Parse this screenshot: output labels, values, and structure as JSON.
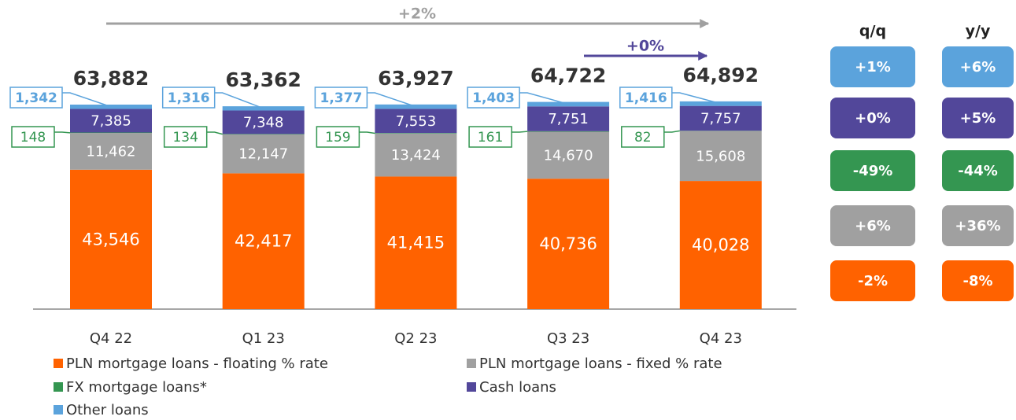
{
  "chart_data": {
    "type": "stacked_bar",
    "categories": [
      "Q4 22",
      "Q1 23",
      "Q2 23",
      "Q3 23",
      "Q4 23"
    ],
    "series": [
      {
        "name": "PLN mortgage loans - floating % rate",
        "color": "#ff6200",
        "values": [
          43546,
          42417,
          41415,
          40736,
          40028
        ],
        "value_labels": [
          "43,546",
          "42,417",
          "41,415",
          "40,736",
          "40,028"
        ]
      },
      {
        "name": "PLN mortgage loans - fixed % rate",
        "color": "#a0a0a0",
        "values": [
          11462,
          12147,
          13424,
          14670,
          15608
        ],
        "value_labels": [
          "11,462",
          "12,147",
          "13,424",
          "14,670",
          "15,608"
        ]
      },
      {
        "name": "FX mortgage loans*",
        "color": "#349651",
        "values": [
          148,
          134,
          159,
          161,
          82
        ]
      },
      {
        "name": "Cash loans",
        "color": "#52479a",
        "values": [
          7385,
          7348,
          7553,
          7751,
          7757
        ],
        "value_labels": [
          "7,385",
          "7,348",
          "7,553",
          "7,751",
          "7,757"
        ]
      },
      {
        "name": "Other loans",
        "color": "#5ba3dc",
        "values": [
          1342,
          1316,
          1377,
          1403,
          1416
        ],
        "value_labels": [
          "1,342",
          "1,316",
          "1,377",
          "1,403",
          "1,416"
        ]
      }
    ],
    "totals": {
      "values": [
        63882,
        63362,
        63927,
        64722,
        64892
      ],
      "value_labels": [
        "63,882",
        "63,362",
        "63,927",
        "64,722",
        "64,892"
      ]
    },
    "annotations": [
      {
        "text": "+2%",
        "color": "#a0a0a0"
      },
      {
        "text": "+0%",
        "color": "#52479a"
      }
    ],
    "change_tables": [
      {
        "title": "q/q",
        "values": [
          -2,
          6,
          -49,
          0,
          1
        ],
        "value_labels": [
          "-2%",
          "+6%",
          "-49%",
          "+0%",
          "+1%"
        ]
      },
      {
        "title": "y/y",
        "values": [
          -8,
          36,
          -44,
          5,
          6
        ],
        "value_labels": [
          "-8%",
          "+36%",
          "-44%",
          "+5%",
          "+6%"
        ]
      }
    ]
  }
}
